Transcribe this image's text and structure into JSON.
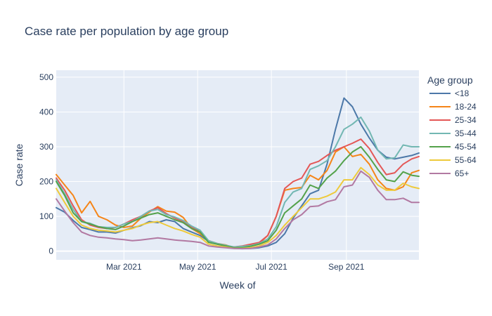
{
  "chart_data": {
    "type": "line",
    "title": "Case rate per population by age group",
    "xlabel": "Week of",
    "ylabel": "Case rate",
    "legend_title": "Age group",
    "legend_position": "right",
    "grid": true,
    "ylim": [
      -25,
      520
    ],
    "yticks": [
      0,
      100,
      200,
      300,
      400,
      500
    ],
    "xlim": [
      "2021-01-04",
      "2021-10-31"
    ],
    "xticks": [
      {
        "date": "2021-03-01",
        "label": "Mar 2021"
      },
      {
        "date": "2021-05-01",
        "label": "May 2021"
      },
      {
        "date": "2021-07-01",
        "label": "Jul 2021"
      },
      {
        "date": "2021-09-01",
        "label": "Sep 2021"
      }
    ],
    "x": [
      "2021-01-04",
      "2021-01-11",
      "2021-01-18",
      "2021-01-25",
      "2021-02-01",
      "2021-02-08",
      "2021-02-15",
      "2021-02-22",
      "2021-03-01",
      "2021-03-08",
      "2021-03-15",
      "2021-03-22",
      "2021-03-29",
      "2021-04-05",
      "2021-04-12",
      "2021-04-19",
      "2021-04-26",
      "2021-05-03",
      "2021-05-10",
      "2021-05-17",
      "2021-05-24",
      "2021-05-31",
      "2021-06-07",
      "2021-06-14",
      "2021-06-21",
      "2021-06-28",
      "2021-07-05",
      "2021-07-12",
      "2021-07-19",
      "2021-07-26",
      "2021-08-02",
      "2021-08-09",
      "2021-08-16",
      "2021-08-23",
      "2021-08-30",
      "2021-09-06",
      "2021-09-13",
      "2021-09-20",
      "2021-09-27",
      "2021-10-04",
      "2021-10-11",
      "2021-10-18",
      "2021-10-25",
      "2021-10-31"
    ],
    "series": [
      {
        "name": "<18",
        "color": "#4c78a8",
        "values": [
          125,
          112,
          88,
          68,
          62,
          55,
          55,
          52,
          60,
          67,
          73,
          85,
          82,
          90,
          85,
          65,
          55,
          45,
          28,
          20,
          15,
          10,
          8,
          8,
          10,
          15,
          25,
          50,
          95,
          130,
          165,
          175,
          250,
          350,
          440,
          415,
          365,
          325,
          290,
          270,
          265,
          270,
          275,
          282
        ]
      },
      {
        "name": "18-24",
        "color": "#f58518",
        "values": [
          220,
          190,
          160,
          110,
          143,
          100,
          90,
          75,
          68,
          72,
          95,
          112,
          128,
          115,
          112,
          97,
          65,
          50,
          30,
          22,
          18,
          10,
          12,
          18,
          22,
          45,
          100,
          175,
          180,
          183,
          218,
          205,
          232,
          285,
          300,
          272,
          278,
          250,
          205,
          180,
          175,
          185,
          225,
          232
        ]
      },
      {
        "name": "25-34",
        "color": "#e45756",
        "values": [
          210,
          175,
          130,
          90,
          75,
          68,
          65,
          68,
          78,
          90,
          100,
          115,
          125,
          108,
          95,
          85,
          70,
          55,
          30,
          22,
          16,
          12,
          15,
          20,
          25,
          45,
          100,
          180,
          200,
          210,
          250,
          258,
          275,
          290,
          300,
          310,
          322,
          295,
          255,
          220,
          225,
          250,
          265,
          272
        ]
      },
      {
        "name": "35-44",
        "color": "#72b7b2",
        "values": [
          205,
          165,
          120,
          85,
          80,
          70,
          68,
          68,
          78,
          85,
          100,
          115,
          120,
          105,
          98,
          88,
          72,
          60,
          30,
          22,
          17,
          12,
          14,
          16,
          22,
          35,
          70,
          140,
          170,
          180,
          235,
          245,
          260,
          300,
          350,
          365,
          385,
          345,
          290,
          265,
          268,
          305,
          300,
          300
        ]
      },
      {
        "name": "45-54",
        "color": "#54a24b",
        "values": [
          200,
          160,
          110,
          85,
          78,
          70,
          65,
          62,
          72,
          85,
          95,
          105,
          110,
          100,
          90,
          82,
          65,
          55,
          25,
          20,
          15,
          10,
          10,
          14,
          20,
          30,
          60,
          110,
          130,
          150,
          190,
          180,
          210,
          230,
          260,
          285,
          300,
          270,
          235,
          205,
          200,
          228,
          218,
          215
        ]
      },
      {
        "name": "55-64",
        "color": "#eeca3b",
        "values": [
          180,
          140,
          100,
          75,
          65,
          60,
          58,
          55,
          60,
          65,
          75,
          82,
          85,
          75,
          65,
          58,
          48,
          40,
          20,
          15,
          12,
          8,
          8,
          10,
          15,
          25,
          45,
          75,
          100,
          125,
          150,
          150,
          158,
          170,
          205,
          205,
          240,
          220,
          190,
          175,
          175,
          195,
          185,
          180
        ]
      },
      {
        "name": "65+",
        "color": "#b279a2",
        "values": [
          150,
          115,
          82,
          55,
          45,
          40,
          38,
          35,
          33,
          30,
          32,
          35,
          38,
          35,
          32,
          30,
          28,
          25,
          15,
          12,
          10,
          8,
          7,
          8,
          12,
          18,
          35,
          65,
          90,
          105,
          128,
          130,
          142,
          148,
          185,
          190,
          230,
          212,
          175,
          148,
          148,
          152,
          140,
          140
        ]
      }
    ]
  }
}
